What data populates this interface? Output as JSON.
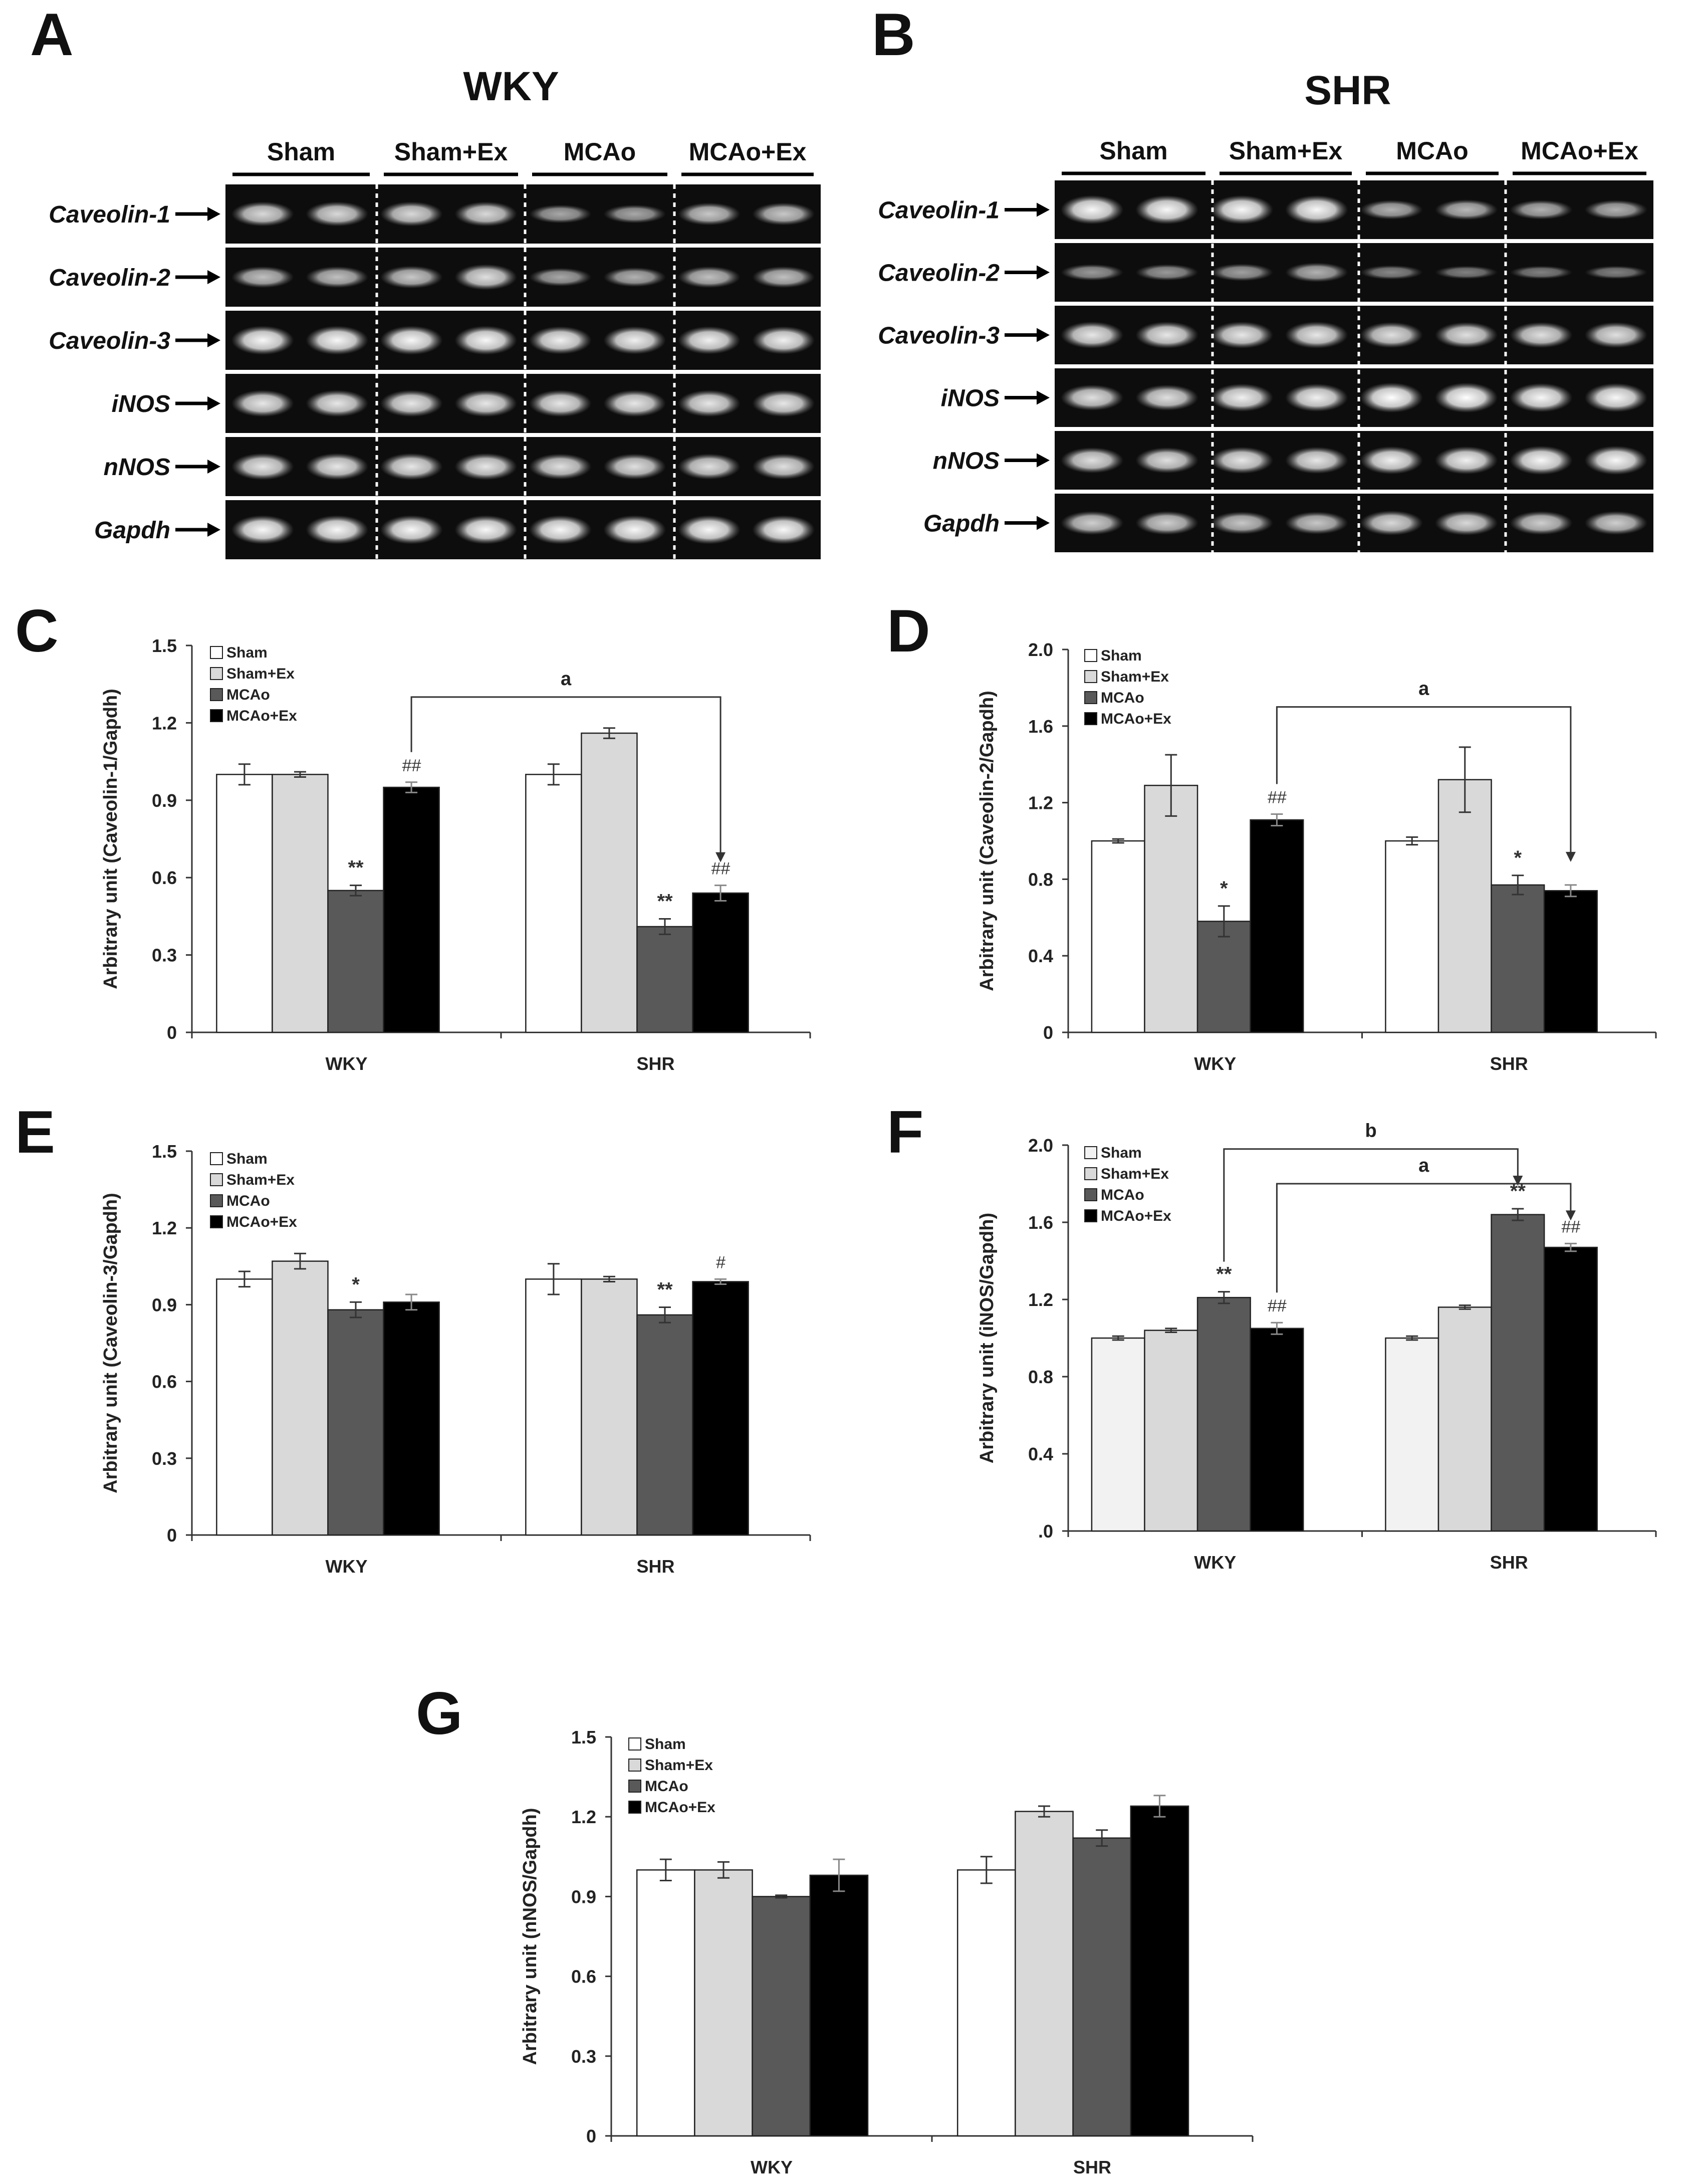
{
  "figure": {
    "panel_labels": [
      "A",
      "B",
      "C",
      "D",
      "E",
      "F",
      "G"
    ],
    "colors": {
      "Sham": "#ffffff",
      "Sham+Ex": "#d9d9d9",
      "MCAo": "#595959",
      "MCAo+Ex": "#000000",
      "F_Sham": "#f2f2f2"
    }
  },
  "gels": [
    {
      "panel": "A",
      "title": "WKY",
      "groups": [
        "Sham",
        "Sham+Ex",
        "MCAo",
        "MCAo+Ex"
      ],
      "rows": [
        "Caveolin-1",
        "Caveolin-2",
        "Caveolin-3",
        "iNOS",
        "nNOS",
        "Gapdh"
      ],
      "intensity": [
        [
          0.75,
          0.75,
          0.75,
          0.75,
          0.45,
          0.45,
          0.65,
          0.65
        ],
        [
          0.6,
          0.6,
          0.65,
          0.8,
          0.45,
          0.5,
          0.6,
          0.6
        ],
        [
          0.95,
          0.95,
          0.95,
          0.95,
          0.9,
          0.9,
          0.9,
          0.9
        ],
        [
          0.85,
          0.85,
          0.85,
          0.85,
          0.85,
          0.85,
          0.85,
          0.85
        ],
        [
          0.85,
          0.85,
          0.85,
          0.85,
          0.8,
          0.8,
          0.8,
          0.8
        ],
        [
          0.95,
          0.95,
          0.95,
          0.95,
          0.95,
          0.95,
          0.95,
          0.95
        ]
      ]
    },
    {
      "panel": "B",
      "title": "SHR",
      "groups": [
        "Sham",
        "Sham+Ex",
        "MCAo",
        "MCAo+Ex"
      ],
      "rows": [
        "Caveolin-1",
        "Caveolin-2",
        "Caveolin-3",
        "iNOS",
        "nNOS",
        "Gapdh"
      ],
      "intensity": [
        [
          0.95,
          0.95,
          0.95,
          0.95,
          0.5,
          0.55,
          0.5,
          0.5
        ],
        [
          0.35,
          0.35,
          0.4,
          0.5,
          0.25,
          0.2,
          0.2,
          0.2
        ],
        [
          0.85,
          0.85,
          0.85,
          0.85,
          0.8,
          0.8,
          0.8,
          0.8
        ],
        [
          0.8,
          0.8,
          0.9,
          0.9,
          1,
          1,
          0.95,
          0.95
        ],
        [
          0.8,
          0.8,
          0.85,
          0.85,
          0.9,
          0.9,
          0.95,
          0.95
        ],
        [
          0.7,
          0.7,
          0.65,
          0.65,
          0.75,
          0.75,
          0.7,
          0.7
        ]
      ]
    }
  ],
  "chart_data": [
    {
      "panel": "C",
      "type": "bar",
      "categories": [
        "WKY",
        "SHR"
      ],
      "ylabel": "Arbitrary unit (Caveolin-1/Gapdh)",
      "ylim": [
        0,
        1.5
      ],
      "yticks": [
        "0",
        "0.3",
        "0.6",
        "0.9",
        "1.2",
        "1.5"
      ],
      "series": [
        {
          "name": "Sham",
          "values": [
            1.0,
            1.0
          ],
          "err": [
            0.04,
            0.04
          ]
        },
        {
          "name": "Sham+Ex",
          "values": [
            1.0,
            1.16
          ],
          "err": [
            0.01,
            0.02
          ]
        },
        {
          "name": "MCAo",
          "values": [
            0.55,
            0.41
          ],
          "err": [
            0.02,
            0.03
          ]
        },
        {
          "name": "MCAo+Ex",
          "values": [
            0.95,
            0.54
          ],
          "err": [
            0.02,
            0.03
          ]
        }
      ],
      "annotations": [
        {
          "text": "**",
          "series": 2,
          "cat": 0
        },
        {
          "text": "##",
          "series": 3,
          "cat": 0
        },
        {
          "text": "**",
          "series": 2,
          "cat": 1
        },
        {
          "text": "##",
          "series": 3,
          "cat": 1
        }
      ],
      "brackets": [
        {
          "label": "a",
          "from": [
            0,
            3
          ],
          "to": [
            1,
            3
          ],
          "level": 1.3
        }
      ]
    },
    {
      "panel": "D",
      "type": "bar",
      "categories": [
        "WKY",
        "SHR"
      ],
      "ylabel": "Arbitrary unit (Caveolin-2/Gapdh)",
      "ylim": [
        0,
        2.0
      ],
      "yticks": [
        "0",
        "0.4",
        "0.8",
        "1.2",
        "1.6",
        "2.0"
      ],
      "series": [
        {
          "name": "Sham",
          "values": [
            1.0,
            1.0
          ],
          "err": [
            0.01,
            0.02
          ]
        },
        {
          "name": "Sham+Ex",
          "values": [
            1.29,
            1.32
          ],
          "err": [
            0.16,
            0.17
          ]
        },
        {
          "name": "MCAo",
          "values": [
            0.58,
            0.77
          ],
          "err": [
            0.08,
            0.05
          ]
        },
        {
          "name": "MCAo+Ex",
          "values": [
            1.11,
            0.74
          ],
          "err": [
            0.03,
            0.03
          ]
        }
      ],
      "annotations": [
        {
          "text": "*",
          "series": 2,
          "cat": 0
        },
        {
          "text": "##",
          "series": 3,
          "cat": 0
        },
        {
          "text": "*",
          "series": 2,
          "cat": 1
        }
      ],
      "brackets": [
        {
          "label": "a",
          "from": [
            0,
            3
          ],
          "to": [
            1,
            3
          ],
          "level": 1.7
        }
      ]
    },
    {
      "panel": "E",
      "type": "bar",
      "categories": [
        "WKY",
        "SHR"
      ],
      "ylabel": "Arbitrary unit (Caveolin-3/Gapdh)",
      "ylim": [
        0,
        1.5
      ],
      "yticks": [
        "0",
        "0.3",
        "0.6",
        "0.9",
        "1.2",
        "1.5"
      ],
      "series": [
        {
          "name": "Sham",
          "values": [
            1.0,
            1.0
          ],
          "err": [
            0.03,
            0.06
          ]
        },
        {
          "name": "Sham+Ex",
          "values": [
            1.07,
            1.0
          ],
          "err": [
            0.03,
            0.01
          ]
        },
        {
          "name": "MCAo",
          "values": [
            0.88,
            0.86
          ],
          "err": [
            0.03,
            0.03
          ]
        },
        {
          "name": "MCAo+Ex",
          "values": [
            0.91,
            0.99
          ],
          "err": [
            0.03,
            0.01
          ]
        }
      ],
      "annotations": [
        {
          "text": "*",
          "series": 2,
          "cat": 0
        },
        {
          "text": "**",
          "series": 2,
          "cat": 1
        },
        {
          "text": "#",
          "series": 3,
          "cat": 1
        }
      ],
      "brackets": []
    },
    {
      "panel": "F",
      "type": "bar",
      "categories": [
        "WKY",
        "SHR"
      ],
      "ylabel": "Arbitrary unit (iNOS/Gapdh)",
      "ylim": [
        0,
        2.0
      ],
      "yticks": [
        ".0",
        "0.4",
        "0.8",
        "1.2",
        "1.6",
        "2.0"
      ],
      "series": [
        {
          "name": "Sham",
          "values": [
            1.0,
            1.0
          ],
          "err": [
            0.01,
            0.01
          ]
        },
        {
          "name": "Sham+Ex",
          "values": [
            1.04,
            1.16
          ],
          "err": [
            0.01,
            0.01
          ]
        },
        {
          "name": "MCAo",
          "values": [
            1.21,
            1.64
          ],
          "err": [
            0.03,
            0.03
          ]
        },
        {
          "name": "MCAo+Ex",
          "values": [
            1.05,
            1.47
          ],
          "err": [
            0.03,
            0.02
          ]
        }
      ],
      "annotations": [
        {
          "text": "**",
          "series": 2,
          "cat": 0
        },
        {
          "text": "##",
          "series": 3,
          "cat": 0
        },
        {
          "text": "**",
          "series": 2,
          "cat": 1
        },
        {
          "text": "##",
          "series": 3,
          "cat": 1
        }
      ],
      "brackets": [
        {
          "label": "b",
          "from": [
            0,
            2
          ],
          "to": [
            1,
            2
          ],
          "level": 1.98
        },
        {
          "label": "a",
          "from": [
            0,
            3
          ],
          "to": [
            1,
            3
          ],
          "level": 1.8
        }
      ]
    },
    {
      "panel": "G",
      "type": "bar",
      "categories": [
        "WKY",
        "SHR"
      ],
      "ylabel": "Arbitrary unit (nNOS/Gapdh)",
      "ylim": [
        0,
        1.5
      ],
      "yticks": [
        "0",
        "0.3",
        "0.6",
        "0.9",
        "1.2",
        "1.5"
      ],
      "series": [
        {
          "name": "Sham",
          "values": [
            1.0,
            1.0
          ],
          "err": [
            0.04,
            0.05
          ]
        },
        {
          "name": "Sham+Ex",
          "values": [
            1.0,
            1.22
          ],
          "err": [
            0.03,
            0.02
          ]
        },
        {
          "name": "MCAo",
          "values": [
            0.9,
            1.12
          ],
          "err": [
            0.005,
            0.03
          ]
        },
        {
          "name": "MCAo+Ex",
          "values": [
            0.98,
            1.24
          ],
          "err": [
            0.06,
            0.04
          ]
        }
      ],
      "annotations": [],
      "brackets": []
    }
  ]
}
